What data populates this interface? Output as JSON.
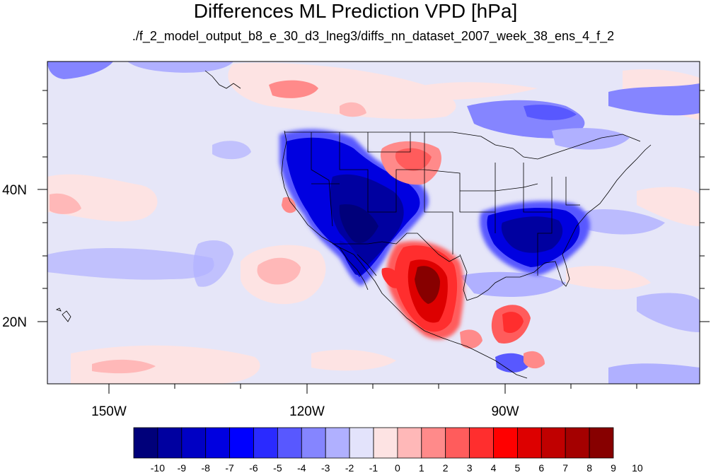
{
  "title": "Differences ML Prediction VPD [hPa]",
  "subtitle": "./f_2_model_output_b8_e_30_d3_lneg3/diffs_nn_dataset_2007_week_38_ens_4_f_2",
  "lat_labels": [
    "40N",
    "20N"
  ],
  "lon_labels": [
    "150W",
    "120W",
    "90W"
  ],
  "colorbar": {
    "labels": [
      "-10",
      "-9",
      "-8",
      "-7",
      "-6",
      "-5",
      "-4",
      "-3",
      "-2",
      "-1",
      "0",
      "1",
      "2",
      "3",
      "4",
      "5",
      "6",
      "7",
      "8",
      "9",
      "10"
    ],
    "colors": [
      "#00007a",
      "#0000a0",
      "#0000c4",
      "#0000e0",
      "#0000ff",
      "#2a2aff",
      "#5858ff",
      "#8585ff",
      "#b0b0ff",
      "#e3e3fb",
      "#fde3e3",
      "#ffb8b8",
      "#ff8a8a",
      "#ff5c5c",
      "#ff2e2e",
      "#ff0000",
      "#dd0000",
      "#c00000",
      "#a40000",
      "#870000"
    ]
  },
  "map": {
    "background": "#e6e6f8",
    "lon_range": [
      -160,
      -62
    ],
    "lat_range": [
      10,
      59
    ]
  }
}
